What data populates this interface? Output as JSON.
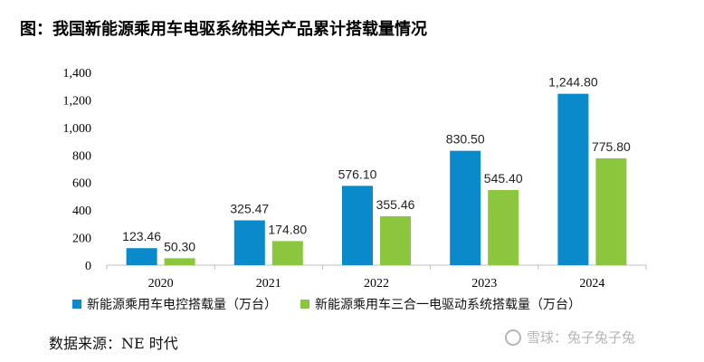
{
  "figure_title": "图：我国新能源乘用车电驱系统相关产品累计搭载量情况",
  "source": "数据来源：NE 时代",
  "watermark": "雪球：兔子兔子兔",
  "chart_data": {
    "type": "bar",
    "title": "我国新能源乘用车电驱系统相关产品累计搭载量情况",
    "categories": [
      "2020",
      "2021",
      "2022",
      "2023",
      "2024"
    ],
    "series": [
      {
        "name": "新能源乘用车电控搭载量（万台）",
        "color": "#0a8acb",
        "values": [
          123.46,
          325.47,
          576.1,
          830.5,
          1244.8
        ],
        "labels": [
          "123.46",
          "325.47",
          "576.10",
          "830.50",
          "1,244.80"
        ]
      },
      {
        "name": "新能源乘用车三合一电驱动系统搭载量（万台）",
        "color": "#8cc63f",
        "values": [
          50.3,
          174.8,
          355.46,
          545.4,
          775.8
        ],
        "labels": [
          "50.30",
          "174.80",
          "355.46",
          "545.40",
          "775.80"
        ]
      }
    ],
    "y_ticks": [
      "0",
      "200",
      "400",
      "600",
      "800",
      "1,000",
      "1,200",
      "1,400"
    ],
    "ylim": [
      0,
      1400
    ],
    "grid": false,
    "legend_position": "bottom"
  }
}
